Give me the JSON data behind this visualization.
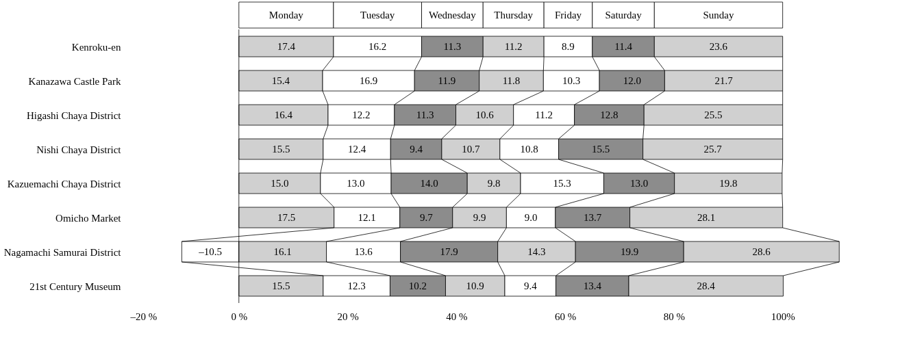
{
  "chart_data": {
    "type": "bar",
    "orientation": "horizontal",
    "stacked": true,
    "legend": "top",
    "categories": [
      "Kenroku-en",
      "Kanazawa Castle Park",
      "Higashi Chaya District",
      "Nishi Chaya District",
      "Kazuemachi Chaya District",
      "Omicho Market",
      "Nagamachi Samurai District",
      "21st Century Museum"
    ],
    "series": [
      {
        "name": "Monday",
        "colors": [
          "#d0d0d0",
          "#d0d0d0",
          "#d0d0d0",
          "#d0d0d0",
          "#d0d0d0",
          "#d0d0d0",
          "#ffffff",
          "#d0d0d0"
        ],
        "values": [
          17.4,
          15.4,
          16.4,
          15.5,
          15.0,
          17.5,
          -10.5,
          15.5
        ],
        "value_labels": [
          "17.4",
          "15.4",
          "16.4",
          "15.5",
          "15.0",
          "17.5",
          "–10.5",
          "15.5"
        ]
      },
      {
        "name": "Tuesday",
        "colors": [
          "#ffffff",
          "#ffffff",
          "#ffffff",
          "#ffffff",
          "#ffffff",
          "#ffffff",
          "#d0d0d0",
          "#ffffff"
        ],
        "values": [
          16.2,
          16.9,
          12.2,
          12.4,
          13.0,
          12.1,
          16.1,
          12.3
        ],
        "value_labels": [
          "16.2",
          "16.9",
          "12.2",
          "12.4",
          "13.0",
          "12.1",
          "16.1",
          "12.3"
        ]
      },
      {
        "name": "Wednesday",
        "colors": [
          "#8c8c8c",
          "#8c8c8c",
          "#8c8c8c",
          "#8c8c8c",
          "#8c8c8c",
          "#8c8c8c",
          "#ffffff",
          "#8c8c8c"
        ],
        "values": [
          11.3,
          11.9,
          11.3,
          9.4,
          14.0,
          9.7,
          13.6,
          10.2
        ],
        "value_labels": [
          "11.3",
          "11.9",
          "11.3",
          "9.4",
          "14.0",
          "9.7",
          "13.6",
          "10.2"
        ]
      },
      {
        "name": "Thursday",
        "colors": [
          "#d0d0d0",
          "#d0d0d0",
          "#d0d0d0",
          "#d0d0d0",
          "#d0d0d0",
          "#d0d0d0",
          "#8c8c8c",
          "#d0d0d0"
        ],
        "values": [
          11.2,
          11.8,
          10.6,
          10.7,
          9.8,
          9.9,
          17.9,
          10.9
        ],
        "value_labels": [
          "11.2",
          "11.8",
          "10.6",
          "10.7",
          "9.8",
          "9.9",
          "17.9",
          "10.9"
        ]
      },
      {
        "name": "Friday",
        "colors": [
          "#ffffff",
          "#ffffff",
          "#ffffff",
          "#ffffff",
          "#ffffff",
          "#ffffff",
          "#d0d0d0",
          "#ffffff"
        ],
        "values": [
          8.9,
          10.3,
          11.2,
          10.8,
          15.3,
          9.0,
          14.3,
          9.4
        ],
        "value_labels": [
          "8.9",
          "10.3",
          "11.2",
          "10.8",
          "15.3",
          "9.0",
          "14.3",
          "9.4"
        ]
      },
      {
        "name": "Saturday",
        "colors": [
          "#8c8c8c",
          "#8c8c8c",
          "#8c8c8c",
          "#8c8c8c",
          "#8c8c8c",
          "#8c8c8c",
          "#8c8c8c",
          "#8c8c8c"
        ],
        "values": [
          11.4,
          12.0,
          12.8,
          15.5,
          13.0,
          13.7,
          19.9,
          13.4
        ],
        "value_labels": [
          "11.4",
          "12.0",
          "12.8",
          "15.5",
          "13.0",
          "13.7",
          "19.9",
          "13.4"
        ]
      },
      {
        "name": "Sunday",
        "colors": [
          "#d0d0d0",
          "#d0d0d0",
          "#d0d0d0",
          "#d0d0d0",
          "#d0d0d0",
          "#d0d0d0",
          "#d0d0d0",
          "#d0d0d0"
        ],
        "values": [
          23.6,
          21.7,
          25.5,
          25.7,
          19.8,
          28.1,
          28.6,
          28.4
        ],
        "value_labels": [
          "23.6",
          "21.7",
          "25.5",
          "25.7",
          "19.8",
          "28.1",
          "28.6",
          "28.4"
        ]
      }
    ],
    "xlim": [
      -20,
      111
    ],
    "xticks": [
      {
        "value": -20,
        "label": "–20 %"
      },
      {
        "value": 0,
        "label": "0 %"
      },
      {
        "value": 20,
        "label": "20 %"
      },
      {
        "value": 40,
        "label": "40 %"
      },
      {
        "value": 60,
        "label": "60 %"
      },
      {
        "value": 80,
        "label": "80 %"
      },
      {
        "value": 100,
        "label": "100%"
      }
    ],
    "ref_lines": [
      {
        "axis": "x",
        "value": 0
      }
    ]
  }
}
